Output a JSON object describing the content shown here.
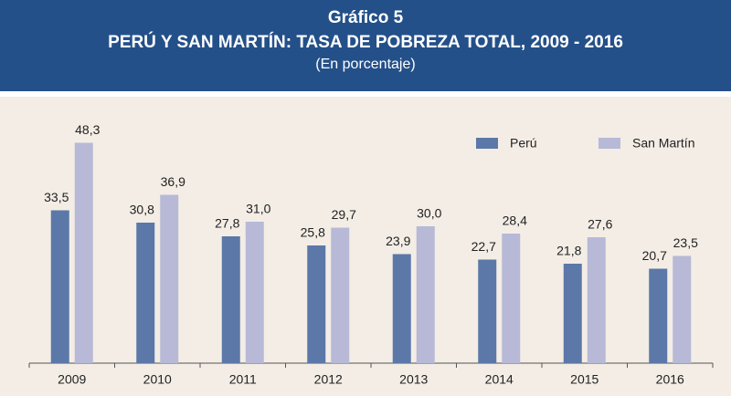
{
  "chart_data": {
    "type": "bar",
    "title": "Gráfico 5",
    "subtitle": "PERÚ Y SAN MARTÍN: TASA DE POBREZA TOTAL, 2009 - 2016",
    "note": "(En porcentaje)",
    "categories": [
      "2009",
      "2010",
      "2011",
      "2012",
      "2013",
      "2014",
      "2015",
      "2016"
    ],
    "series": [
      {
        "name": "Perú",
        "color": "#5b78a8",
        "values": [
          33.5,
          30.8,
          27.8,
          25.8,
          23.9,
          22.7,
          21.8,
          20.7
        ],
        "value_labels": [
          "33,5",
          "30,8",
          "27,8",
          "25,8",
          "23,9",
          "22,7",
          "21,8",
          "20,7"
        ]
      },
      {
        "name": "San Martín",
        "color": "#b7b9d7",
        "values": [
          48.3,
          36.9,
          31.0,
          29.7,
          30.0,
          28.4,
          27.6,
          23.5
        ],
        "value_labels": [
          "48,3",
          "36,9",
          "31,0",
          "29,7",
          "30,0",
          "28,4",
          "27,6",
          "23,5"
        ]
      }
    ],
    "legend": "top-right"
  }
}
